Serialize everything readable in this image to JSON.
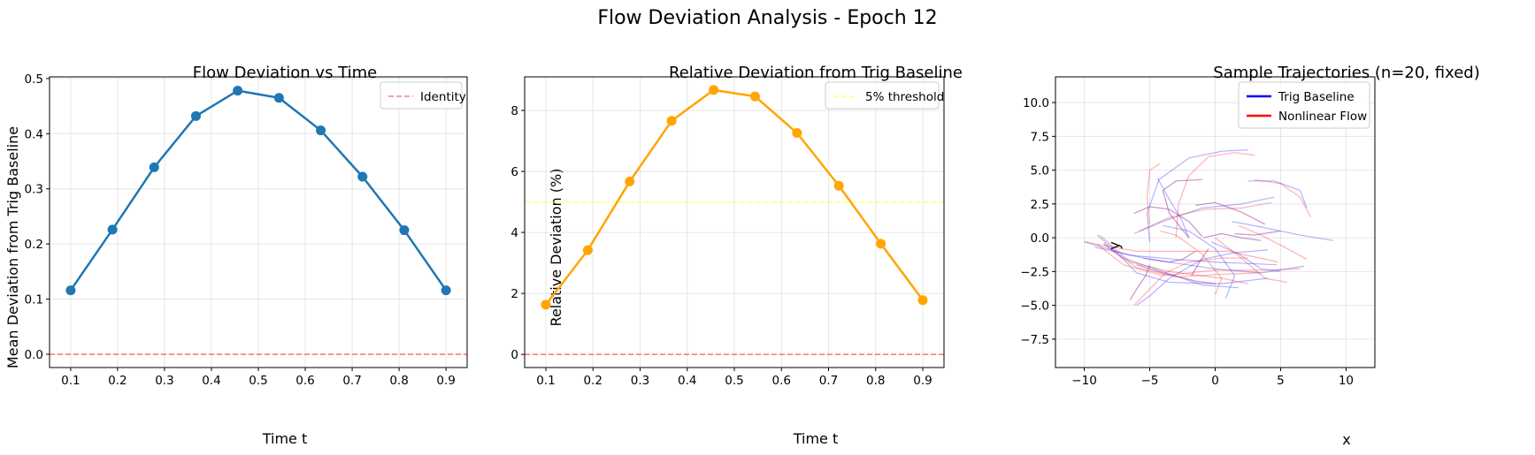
{
  "figure": {
    "suptitle": "Flow Deviation Analysis - Epoch 12"
  },
  "chart_data": [
    {
      "type": "line",
      "title": "Flow Deviation vs Time",
      "xlabel": "Time t",
      "ylabel": "Mean Deviation from Trig Baseline",
      "xlim": [
        0.055,
        0.945
      ],
      "ylim": [
        -0.024,
        0.503
      ],
      "xticks": [
        0.1,
        0.2,
        0.3,
        0.4,
        0.5,
        0.6,
        0.7,
        0.8,
        0.9
      ],
      "yticks": [
        0.0,
        0.1,
        0.2,
        0.3,
        0.4,
        0.5
      ],
      "grid": true,
      "series": [
        {
          "color": "#1f77b4",
          "marker": "circle",
          "x": [
            0.1,
            0.189,
            0.278,
            0.367,
            0.456,
            0.544,
            0.633,
            0.722,
            0.811,
            0.9
          ],
          "y": [
            0.116,
            0.226,
            0.339,
            0.432,
            0.478,
            0.465,
            0.406,
            0.322,
            0.225,
            0.116
          ]
        }
      ],
      "hlines": [
        {
          "name": "Identity",
          "y": 0.0,
          "color": "#ff0000",
          "style": "dashed",
          "alpha": 0.5
        }
      ],
      "legend": {
        "location": "upper-right",
        "entries": [
          "Identity"
        ]
      }
    },
    {
      "type": "line",
      "title": "Relative Deviation from Trig Baseline",
      "xlabel": "Time t",
      "ylabel": "Relative Deviation (%)",
      "xlim": [
        0.055,
        0.945
      ],
      "ylim": [
        -0.43,
        9.1
      ],
      "xticks": [
        0.1,
        0.2,
        0.3,
        0.4,
        0.5,
        0.6,
        0.7,
        0.8,
        0.9
      ],
      "yticks": [
        0,
        2,
        4,
        6,
        8
      ],
      "grid": true,
      "series": [
        {
          "color": "#ffa500",
          "marker": "circle",
          "x": [
            0.1,
            0.189,
            0.278,
            0.367,
            0.456,
            0.544,
            0.633,
            0.722,
            0.811,
            0.9
          ],
          "y": [
            1.63,
            3.42,
            5.67,
            7.66,
            8.67,
            8.46,
            7.26,
            5.53,
            3.63,
            1.78
          ]
        }
      ],
      "hlines": [
        {
          "name": "5% threshold",
          "y": 5.0,
          "color": "#ffff00",
          "style": "dashed",
          "alpha": 0.5
        },
        {
          "name": "",
          "y": 0.0,
          "color": "#ff0000",
          "style": "dashed",
          "alpha": 0.5
        }
      ],
      "legend": {
        "location": "upper-right",
        "entries": [
          "5% threshold"
        ]
      }
    },
    {
      "type": "line",
      "title": "Sample Trajectories (n=20, fixed)",
      "xlabel": "x",
      "ylabel": "y",
      "xlim": [
        -12.2,
        12.2
      ],
      "ylim": [
        -9.6,
        11.9
      ],
      "xticks": [
        -10,
        -5,
        0,
        5,
        10
      ],
      "yticks": [
        -7.5,
        -5.0,
        -2.5,
        0.0,
        2.5,
        5.0,
        7.5,
        10.0
      ],
      "xtick_labels": [
        "−10",
        "−5",
        "0",
        "5",
        "10"
      ],
      "ytick_labels": [
        "−7.5",
        "−5.0",
        "−2.5",
        "0.0",
        "2.5",
        "5.0",
        "7.5",
        "10.0"
      ],
      "grid": true,
      "legend": {
        "location": "upper-right",
        "entries": [
          "Trig Baseline",
          "Nonlinear Flow"
        ]
      },
      "legend_colors": [
        "#0000ff",
        "#ff0000"
      ],
      "trajectories": {
        "blue_alpha": 0.3,
        "red_alpha": 0.3,
        "baseline": [
          [
            [
              -10.0,
              -0.3
            ],
            [
              -6.5,
              -1.3
            ],
            [
              -3.0,
              -1.6
            ],
            [
              0.0,
              -1.8
            ],
            [
              4.7,
              -2.0
            ]
          ],
          [
            [
              -9.2,
              -0.7
            ],
            [
              -5.0,
              -1.6
            ],
            [
              0.0,
              -2.3
            ],
            [
              3.5,
              -2.6
            ],
            [
              6.8,
              -2.1
            ]
          ],
          [
            [
              -8.5,
              -0.4
            ],
            [
              -7.0,
              -1.6
            ],
            [
              -6.0,
              -2.6
            ],
            [
              -3.5,
              -3.3
            ],
            [
              0.5,
              -3.4
            ],
            [
              4.0,
              -3.0
            ]
          ],
          [
            [
              -6.0,
              -5.0
            ],
            [
              -5.0,
              -4.3
            ],
            [
              -3.5,
              -3.0
            ],
            [
              -1.0,
              -1.6
            ],
            [
              1.5,
              -1.1
            ],
            [
              4.0,
              -0.9
            ]
          ],
          [
            [
              -5.0,
              -0.3
            ],
            [
              -5.2,
              1.8
            ],
            [
              -4.3,
              4.3
            ],
            [
              -2.0,
              5.9
            ],
            [
              0.5,
              6.4
            ],
            [
              2.5,
              6.5
            ]
          ],
          [
            [
              -4.0,
              0.9
            ],
            [
              -2.0,
              0.5
            ],
            [
              0.0,
              -0.8
            ],
            [
              1.5,
              -2.8
            ],
            [
              0.8,
              -4.5
            ]
          ],
          [
            [
              -6.2,
              0.3
            ],
            [
              -4.0,
              1.2
            ],
            [
              -1.0,
              2.2
            ],
            [
              2.0,
              2.5
            ],
            [
              4.5,
              3.0
            ]
          ],
          [
            [
              1.3,
              1.2
            ],
            [
              3.5,
              0.8
            ],
            [
              6.5,
              0.2
            ],
            [
              9.0,
              -0.2
            ]
          ],
          [
            [
              2.5,
              4.2
            ],
            [
              4.5,
              4.2
            ],
            [
              6.5,
              3.5
            ],
            [
              7.0,
              2.2
            ]
          ],
          [
            [
              -9.0,
              0.2
            ],
            [
              -7.0,
              -1.5
            ],
            [
              -4.0,
              -2.5
            ],
            [
              -1.0,
              -3.5
            ],
            [
              1.8,
              -3.7
            ]
          ],
          [
            [
              -4.4,
              4.4
            ],
            [
              -3.6,
              3.0
            ],
            [
              -2.6,
              1.4
            ],
            [
              -2.0,
              0.0
            ]
          ],
          [
            [
              -0.3,
              -0.3
            ],
            [
              1.8,
              -1.2
            ],
            [
              3.5,
              -2.3
            ],
            [
              5.0,
              -2.5
            ]
          ]
        ],
        "flow": [
          [
            [
              -10.0,
              -0.3
            ],
            [
              -6.0,
              -1.0
            ],
            [
              -2.5,
              -1.0
            ],
            [
              1.0,
              -1.0
            ],
            [
              4.8,
              -1.8
            ]
          ],
          [
            [
              -9.0,
              -0.5
            ],
            [
              -7.0,
              -2.0
            ],
            [
              -4.0,
              -2.8
            ],
            [
              0.0,
              -2.4
            ],
            [
              3.5,
              -2.4
            ],
            [
              6.5,
              -2.3
            ]
          ],
          [
            [
              -8.5,
              -0.5
            ],
            [
              -7.5,
              -1.2
            ],
            [
              -6.0,
              -2.2
            ],
            [
              -3.0,
              -2.9
            ],
            [
              0.5,
              -2.7
            ],
            [
              3.5,
              -2.6
            ]
          ],
          [
            [
              -6.2,
              -5.0
            ],
            [
              -5.2,
              -4.0
            ],
            [
              -3.8,
              -2.6
            ],
            [
              -2.0,
              -1.8
            ],
            [
              0.5,
              -1.5
            ],
            [
              2.5,
              -1.5
            ]
          ],
          [
            [
              -3.0,
              0.0
            ],
            [
              -2.8,
              2.5
            ],
            [
              -2.0,
              4.6
            ],
            [
              -0.5,
              6.0
            ],
            [
              1.5,
              6.3
            ],
            [
              3.0,
              6.1
            ]
          ],
          [
            [
              -4.2,
              0.5
            ],
            [
              -3.0,
              0.2
            ],
            [
              -1.0,
              -1.2
            ],
            [
              0.5,
              -3.0
            ],
            [
              0.0,
              -4.2
            ]
          ],
          [
            [
              -5.8,
              0.5
            ],
            [
              -3.5,
              1.5
            ],
            [
              -0.8,
              2.1
            ],
            [
              2.0,
              2.2
            ],
            [
              4.3,
              2.6
            ]
          ],
          [
            [
              1.8,
              0.9
            ],
            [
              3.5,
              0.2
            ],
            [
              5.5,
              -0.8
            ],
            [
              7.0,
              -1.6
            ]
          ],
          [
            [
              3.0,
              4.3
            ],
            [
              5.0,
              4.0
            ],
            [
              6.5,
              3.0
            ],
            [
              7.3,
              1.5
            ]
          ],
          [
            [
              -8.8,
              0.2
            ],
            [
              -6.5,
              -1.8
            ],
            [
              -3.5,
              -2.5
            ],
            [
              0.5,
              -3.0
            ],
            [
              2.5,
              -3.4
            ]
          ],
          [
            [
              -4.2,
              5.5
            ],
            [
              -5.0,
              5.0
            ],
            [
              -5.2,
              3.0
            ],
            [
              -5.0,
              1.0
            ]
          ],
          [
            [
              0.0,
              0.0
            ],
            [
              2.0,
              -1.5
            ],
            [
              3.8,
              -3.0
            ],
            [
              5.5,
              -3.3
            ]
          ]
        ],
        "overlap": [
          [
            [
              -6.2,
              1.8
            ],
            [
              -5.0,
              2.3
            ],
            [
              -3.5,
              2.1
            ],
            [
              -2.0,
              1.2
            ],
            [
              -1.0,
              0.1
            ]
          ],
          [
            [
              -2.0,
              0.0
            ],
            [
              -3.5,
              1.8
            ],
            [
              -4.0,
              3.5
            ],
            [
              -3.0,
              4.2
            ],
            [
              -1.0,
              4.3
            ]
          ],
          [
            [
              -1.5,
              -1.0
            ],
            [
              -2.5,
              -1.6
            ],
            [
              -3.5,
              -1.8
            ],
            [
              -5.5,
              -1.5
            ]
          ],
          [
            [
              -6.0,
              -2.0
            ],
            [
              -4.0,
              -2.6
            ],
            [
              -1.5,
              -3.2
            ],
            [
              0.0,
              -3.4
            ]
          ],
          [
            [
              -0.5,
              -0.8
            ],
            [
              -1.2,
              -1.8
            ],
            [
              -1.8,
              -2.8
            ]
          ],
          [
            [
              -1.5,
              2.4
            ],
            [
              0.0,
              2.6
            ],
            [
              2.0,
              1.9
            ],
            [
              3.8,
              1.0
            ]
          ],
          [
            [
              1.5,
              0.3
            ],
            [
              3.0,
              0.2
            ],
            [
              4.3,
              0.4
            ],
            [
              5.0,
              0.5
            ]
          ],
          [
            [
              -6.5,
              -4.6
            ],
            [
              -6.0,
              -3.8
            ],
            [
              -5.3,
              -2.8
            ],
            [
              -5.0,
              -2.0
            ]
          ],
          [
            [
              -0.9,
              0.0
            ],
            [
              0.5,
              0.3
            ],
            [
              2.0,
              0.0
            ],
            [
              3.5,
              -0.2
            ]
          ]
        ],
        "overlap_color": "#9a3b9a"
      }
    }
  ]
}
